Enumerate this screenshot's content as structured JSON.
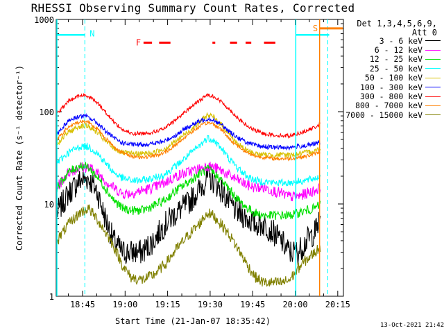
{
  "chart_data": {
    "type": "line",
    "title": "RHESSI Observing Summary Count Rates, Corrected",
    "xlabel": "Start Time (21-Jan-07 18:35:42)",
    "ylabel": "Corrected Count Rate (s⁻¹ detector⁻¹)",
    "yscale": "log",
    "ylim": [
      1,
      1000
    ],
    "xlim_minutes_since_18_00": [
      35.7,
      137
    ],
    "y_ticks": [
      "1",
      "10",
      "100",
      "1000"
    ],
    "x_ticks": [
      {
        "label": "18:45",
        "minutes": 45
      },
      {
        "label": "19:00",
        "minutes": 60
      },
      {
        "label": "19:15",
        "minutes": 75
      },
      {
        "label": "19:30",
        "minutes": 90
      },
      {
        "label": "19:45",
        "minutes": 105
      },
      {
        "label": "20:00",
        "minutes": 120
      },
      {
        "label": "20:15",
        "minutes": 135
      }
    ],
    "legend_header": [
      "Det 1,3,4,5,6,9,",
      "Att 0"
    ],
    "series": [
      {
        "name": "3 - 6 keV",
        "color": "#000000",
        "points": [
          [
            36,
            8
          ],
          [
            40,
            13
          ],
          [
            44,
            18
          ],
          [
            47,
            19
          ],
          [
            50,
            14
          ],
          [
            53,
            7
          ],
          [
            56,
            4
          ],
          [
            59,
            3
          ],
          [
            62,
            3
          ],
          [
            66,
            3
          ],
          [
            70,
            4
          ],
          [
            74,
            6
          ],
          [
            78,
            8
          ],
          [
            82,
            10
          ],
          [
            86,
            14
          ],
          [
            89,
            19
          ],
          [
            91,
            18
          ],
          [
            94,
            14
          ],
          [
            97,
            10
          ],
          [
            100,
            8
          ],
          [
            103,
            7
          ],
          [
            106,
            6
          ],
          [
            109,
            6
          ],
          [
            112,
            5
          ],
          [
            115,
            4
          ],
          [
            118,
            3
          ],
          [
            121,
            3
          ],
          [
            124,
            4
          ],
          [
            127,
            5
          ],
          [
            129,
            7
          ]
        ]
      },
      {
        "name": "6 - 12 keV",
        "color": "#ff00ff",
        "points": [
          [
            36,
            15
          ],
          [
            40,
            22
          ],
          [
            44,
            25
          ],
          [
            47,
            25
          ],
          [
            50,
            22
          ],
          [
            53,
            18
          ],
          [
            56,
            15
          ],
          [
            59,
            13
          ],
          [
            62,
            13
          ],
          [
            66,
            14
          ],
          [
            70,
            15
          ],
          [
            74,
            17
          ],
          [
            78,
            20
          ],
          [
            82,
            22
          ],
          [
            86,
            24
          ],
          [
            89,
            26
          ],
          [
            91,
            25
          ],
          [
            94,
            23
          ],
          [
            97,
            20
          ],
          [
            100,
            18
          ],
          [
            103,
            16
          ],
          [
            106,
            15
          ],
          [
            109,
            15
          ],
          [
            112,
            14
          ],
          [
            115,
            13
          ],
          [
            118,
            12
          ],
          [
            121,
            12
          ],
          [
            124,
            13
          ],
          [
            127,
            14
          ],
          [
            129,
            15
          ]
        ]
      },
      {
        "name": "12 - 25 keV",
        "color": "#00e000",
        "points": [
          [
            36,
            15
          ],
          [
            40,
            22
          ],
          [
            44,
            26
          ],
          [
            47,
            25
          ],
          [
            50,
            20
          ],
          [
            53,
            15
          ],
          [
            56,
            11
          ],
          [
            59,
            9
          ],
          [
            62,
            8.5
          ],
          [
            66,
            8.5
          ],
          [
            70,
            9.5
          ],
          [
            74,
            11
          ],
          [
            78,
            14
          ],
          [
            82,
            17
          ],
          [
            86,
            21
          ],
          [
            89,
            24
          ],
          [
            91,
            22
          ],
          [
            94,
            18
          ],
          [
            97,
            14
          ],
          [
            100,
            11
          ],
          [
            103,
            9
          ],
          [
            106,
            8
          ],
          [
            109,
            7.5
          ],
          [
            112,
            7.5
          ],
          [
            115,
            7.5
          ],
          [
            118,
            7.5
          ],
          [
            121,
            8
          ],
          [
            124,
            8.5
          ],
          [
            127,
            9
          ],
          [
            129,
            10
          ]
        ]
      },
      {
        "name": "25 - 50 keV",
        "color": "#00ffff",
        "points": [
          [
            36,
            28
          ],
          [
            40,
            36
          ],
          [
            44,
            42
          ],
          [
            47,
            42
          ],
          [
            50,
            36
          ],
          [
            53,
            28
          ],
          [
            56,
            22
          ],
          [
            59,
            19
          ],
          [
            62,
            18
          ],
          [
            66,
            18
          ],
          [
            70,
            19
          ],
          [
            74,
            21
          ],
          [
            78,
            26
          ],
          [
            82,
            33
          ],
          [
            86,
            42
          ],
          [
            89,
            52
          ],
          [
            91,
            50
          ],
          [
            94,
            40
          ],
          [
            97,
            30
          ],
          [
            100,
            24
          ],
          [
            103,
            20
          ],
          [
            106,
            18
          ],
          [
            109,
            17.5
          ],
          [
            112,
            17
          ],
          [
            115,
            17
          ],
          [
            118,
            17
          ],
          [
            121,
            17.5
          ],
          [
            124,
            18
          ],
          [
            127,
            19
          ],
          [
            129,
            20
          ]
        ]
      },
      {
        "name": "50 - 100 keV",
        "color": "#d8c000",
        "points": [
          [
            36,
            45
          ],
          [
            40,
            60
          ],
          [
            44,
            70
          ],
          [
            47,
            70
          ],
          [
            50,
            60
          ],
          [
            53,
            48
          ],
          [
            56,
            40
          ],
          [
            59,
            36
          ],
          [
            62,
            35
          ],
          [
            66,
            35
          ],
          [
            70,
            36
          ],
          [
            74,
            40
          ],
          [
            78,
            48
          ],
          [
            82,
            60
          ],
          [
            86,
            76
          ],
          [
            89,
            92
          ],
          [
            91,
            88
          ],
          [
            94,
            72
          ],
          [
            97,
            56
          ],
          [
            100,
            44
          ],
          [
            103,
            38
          ],
          [
            106,
            35
          ],
          [
            109,
            34
          ],
          [
            112,
            34
          ],
          [
            115,
            34
          ],
          [
            118,
            34
          ],
          [
            121,
            35
          ],
          [
            124,
            36
          ],
          [
            127,
            38
          ],
          [
            129,
            40
          ]
        ]
      },
      {
        "name": "100 - 300 keV",
        "color": "#0000ff",
        "points": [
          [
            36,
            58
          ],
          [
            40,
            80
          ],
          [
            44,
            90
          ],
          [
            47,
            88
          ],
          [
            50,
            76
          ],
          [
            53,
            62
          ],
          [
            56,
            52
          ],
          [
            59,
            46
          ],
          [
            62,
            44
          ],
          [
            66,
            44
          ],
          [
            70,
            45
          ],
          [
            74,
            48
          ],
          [
            78,
            56
          ],
          [
            82,
            68
          ],
          [
            86,
            78
          ],
          [
            89,
            84
          ],
          [
            91,
            82
          ],
          [
            94,
            72
          ],
          [
            97,
            60
          ],
          [
            100,
            52
          ],
          [
            103,
            46
          ],
          [
            106,
            43
          ],
          [
            109,
            42
          ],
          [
            112,
            41
          ],
          [
            115,
            41
          ],
          [
            118,
            41
          ],
          [
            121,
            42
          ],
          [
            124,
            43
          ],
          [
            127,
            45
          ],
          [
            129,
            47
          ]
        ]
      },
      {
        "name": "300 - 800 keV",
        "color": "#ff0000",
        "points": [
          [
            36,
            95
          ],
          [
            40,
            130
          ],
          [
            44,
            150
          ],
          [
            47,
            148
          ],
          [
            50,
            128
          ],
          [
            53,
            100
          ],
          [
            56,
            78
          ],
          [
            59,
            64
          ],
          [
            62,
            58
          ],
          [
            66,
            58
          ],
          [
            70,
            60
          ],
          [
            74,
            66
          ],
          [
            78,
            82
          ],
          [
            82,
            105
          ],
          [
            86,
            130
          ],
          [
            89,
            152
          ],
          [
            91,
            148
          ],
          [
            94,
            128
          ],
          [
            97,
            104
          ],
          [
            100,
            84
          ],
          [
            103,
            70
          ],
          [
            106,
            62
          ],
          [
            109,
            58
          ],
          [
            112,
            56
          ],
          [
            115,
            55
          ],
          [
            118,
            55
          ],
          [
            121,
            58
          ],
          [
            124,
            62
          ],
          [
            127,
            68
          ],
          [
            129,
            74
          ]
        ]
      },
      {
        "name": "800 - 7000 keV",
        "color": "#ff8000",
        "points": [
          [
            36,
            50
          ],
          [
            40,
            68
          ],
          [
            44,
            78
          ],
          [
            47,
            78
          ],
          [
            50,
            66
          ],
          [
            53,
            52
          ],
          [
            56,
            42
          ],
          [
            59,
            36
          ],
          [
            62,
            33
          ],
          [
            66,
            32
          ],
          [
            70,
            33
          ],
          [
            74,
            36
          ],
          [
            78,
            44
          ],
          [
            82,
            56
          ],
          [
            86,
            68
          ],
          [
            89,
            76
          ],
          [
            91,
            74
          ],
          [
            94,
            64
          ],
          [
            97,
            50
          ],
          [
            100,
            42
          ],
          [
            103,
            36
          ],
          [
            106,
            33
          ],
          [
            109,
            32
          ],
          [
            112,
            31
          ],
          [
            115,
            31
          ],
          [
            118,
            31
          ],
          [
            121,
            32
          ],
          [
            124,
            33
          ],
          [
            127,
            35
          ],
          [
            129,
            37
          ]
        ]
      },
      {
        "name": "7000 - 15000 keV",
        "color": "#808000",
        "points": [
          [
            36,
            4
          ],
          [
            40,
            6
          ],
          [
            44,
            8
          ],
          [
            47,
            9
          ],
          [
            50,
            7
          ],
          [
            53,
            5
          ],
          [
            56,
            3.5
          ],
          [
            59,
            2.2
          ],
          [
            62,
            1.6
          ],
          [
            66,
            1.5
          ],
          [
            70,
            1.7
          ],
          [
            74,
            2.2
          ],
          [
            78,
            3.2
          ],
          [
            82,
            4.5
          ],
          [
            86,
            6
          ],
          [
            89,
            8
          ],
          [
            91,
            7.5
          ],
          [
            94,
            6
          ],
          [
            97,
            4.5
          ],
          [
            100,
            3.2
          ],
          [
            103,
            2.2
          ],
          [
            106,
            1.6
          ],
          [
            109,
            1.4
          ],
          [
            112,
            1.4
          ],
          [
            115,
            1.4
          ],
          [
            118,
            1.5
          ],
          [
            121,
            2
          ],
          [
            124,
            2.5
          ],
          [
            127,
            3
          ],
          [
            129,
            3.5
          ]
        ]
      }
    ],
    "annotations": [
      {
        "text": "N",
        "color": "#00ffff"
      },
      {
        "text": "F",
        "color": "#ff0000"
      },
      {
        "text": "S",
        "color": "#ff8000"
      }
    ]
  },
  "timestamp": "13-Oct-2021 21:42"
}
